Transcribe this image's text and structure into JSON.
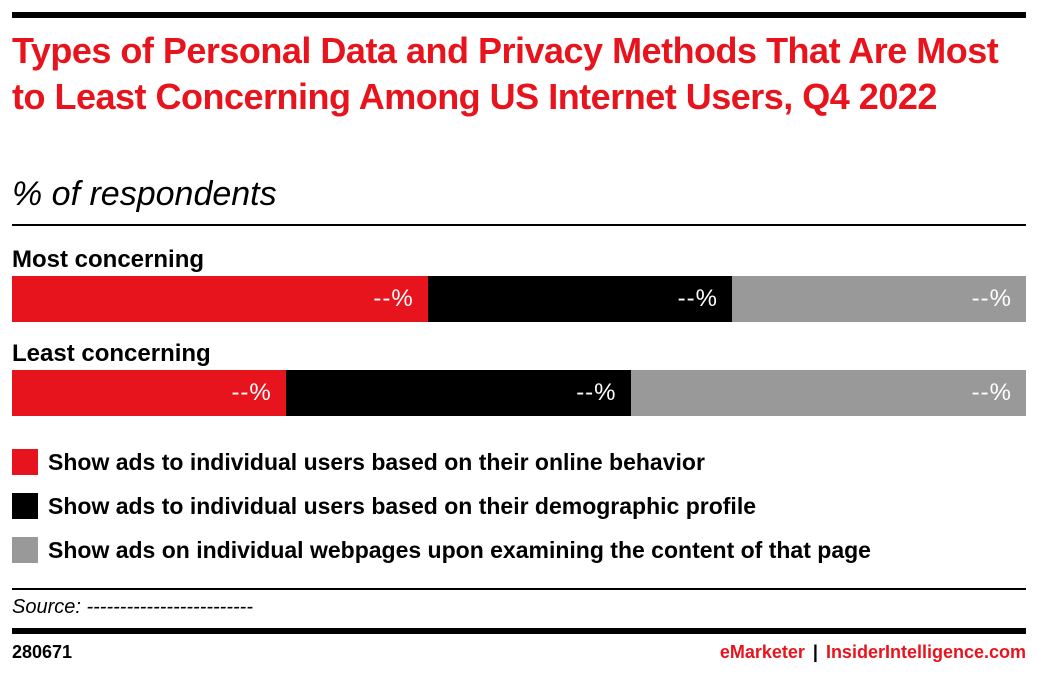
{
  "title": "Types of Personal Data and Privacy Methods That Are Most to Least Concerning Among US Internet Users, Q4 2022",
  "subtitle": "% of respondents",
  "colors": {
    "accent": "#e8141d",
    "series_1": "#e8141d",
    "series_2": "#000000",
    "series_3": "#999999"
  },
  "chart_data": {
    "type": "bar",
    "orientation": "horizontal",
    "stacked": true,
    "title": "Types of Personal Data and Privacy Methods That Are Most to Least Concerning Among US Internet Users, Q4 2022",
    "subtitle": "% of respondents",
    "categories": [
      "Most concerning",
      "Least concerning"
    ],
    "series": [
      {
        "name": "Show ads to individual users based on their online behavior",
        "color": "#e8141d",
        "values": [
          41,
          27
        ],
        "labels": [
          "--%",
          "--%"
        ]
      },
      {
        "name": "Show ads to individual users based on their demographic profile",
        "color": "#000000",
        "values": [
          30,
          34
        ],
        "labels": [
          "--%",
          "--%"
        ]
      },
      {
        "name": "Show ads on individual webpages upon examining the content of that page",
        "color": "#999999",
        "values": [
          29,
          39
        ],
        "labels": [
          "--%",
          "--%"
        ]
      }
    ],
    "xlim": [
      0,
      100
    ],
    "grid": false,
    "legend_position": "bottom"
  },
  "source": "Source: -------------------------",
  "footer": {
    "id": "280671",
    "brand_emarketer": "eMarketer",
    "separator": "|",
    "brand_insider": "InsiderIntelligence.com"
  }
}
